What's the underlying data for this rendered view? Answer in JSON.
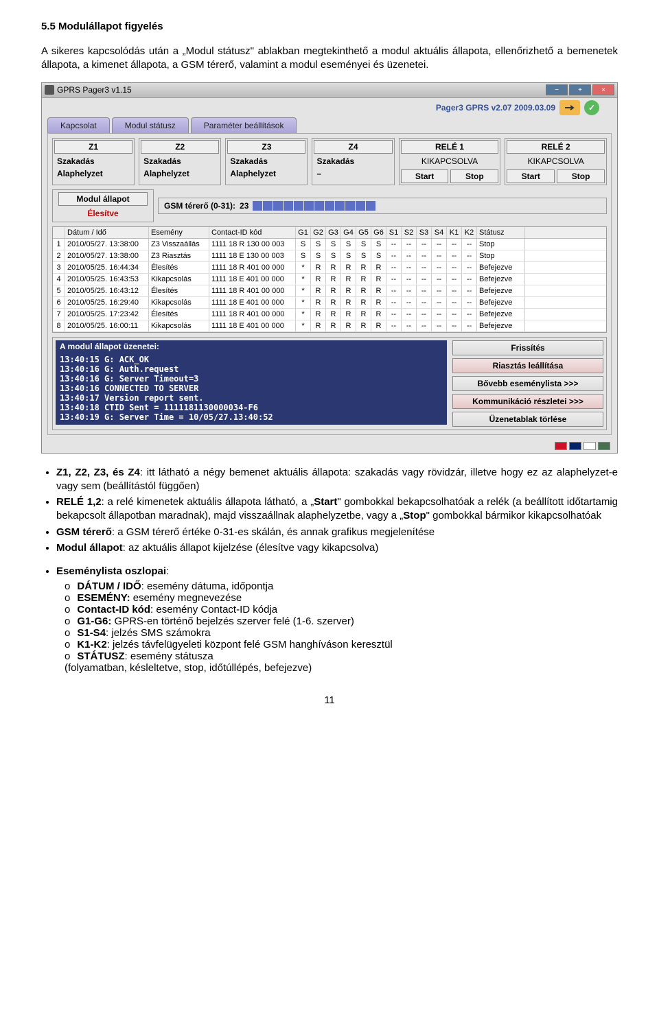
{
  "doc": {
    "heading": "5.5   Modulállapot figyelés",
    "intro": "A sikeres kapcsolódás után a „Modul státusz\" ablakban megtekinthető a modul aktuális állapota, ellenőrizhető a bemenetek állapota, a kimenet állapota, a GSM térerő, valamint a modul eseményei és üzenetei.",
    "after_bullets_spacer": "",
    "b1_pre": "Z1, Z2, Z3, és Z4",
    "b1": ": itt látható a négy bemenet aktuális állapota: szakadás vagy rövidzár, illetve hogy ez az alaphelyzet-e vagy sem (beállítástól függően)",
    "b2_pre": "RELÉ 1,2",
    "b2": ": a relé kimenetek aktuális állapota látható, a „",
    "b2_s": "Start",
    "b2_2": "\" gombokkal bekapcsolhatóak a relék (a beállított időtartamig bekapcsolt állapotban maradnak), majd visszaállnak alaphelyzetbe, vagy a „",
    "b2_st": "Stop",
    "b2_3": "\" gombokkal bármikor kikapcsolhatóak",
    "b3_pre": "GSM térerő",
    "b3": ": a GSM térerő értéke 0-31-es skálán, és annak grafikus megjelenítése",
    "b4_pre": "Modul állapot",
    "b4": ": az aktuális állapot kijelzése (élesítve vagy kikapcsolva)",
    "b5_pre": "Eseménylista oszlopai",
    "b5": ":",
    "s1_pre": "DÁTUM / IDŐ",
    "s1": ": esemény dátuma, időpontja",
    "s2_pre": "ESEMÉNY:",
    "s2": " esemény megnevezése",
    "s3_pre": "Contact-ID kód",
    "s3": ": esemény Contact-ID kódja",
    "s4_pre": "G1-G6:",
    "s4": " GPRS-en történő bejelzés szerver felé (1-6. szerver)",
    "s5_pre": "S1-S4",
    "s5": ": jelzés SMS számokra",
    "s6_pre": "K1-K2",
    "s6": ": jelzés távfelügyeleti központ felé GSM hanghíváson keresztül",
    "s7_pre": "STÁTUSZ",
    "s7": ": esemény státusza",
    "s7_2": "(folyamatban, késleltetve, stop, időtúllépés, befejezve)",
    "pagenum": "11"
  },
  "app": {
    "title": "GPRS Pager3 v1.15",
    "version": "Pager3 GPRS v2.07 2009.03.09",
    "tabs": [
      "Kapcsolat",
      "Modul státusz",
      "Paraméter beállítások"
    ],
    "zones": [
      {
        "h": "Z1",
        "v1": "Szakadás",
        "v2": "Alaphelyzet"
      },
      {
        "h": "Z2",
        "v1": "Szakadás",
        "v2": "Alaphelyzet"
      },
      {
        "h": "Z3",
        "v1": "Szakadás",
        "v2": "Alaphelyzet"
      },
      {
        "h": "Z4",
        "v1": "Szakadás",
        "v2": "–"
      }
    ],
    "relays": [
      {
        "h": "RELÉ 1",
        "v": "KIKAPCSOLVA",
        "b1": "Start",
        "b2": "Stop"
      },
      {
        "h": "RELÉ 2",
        "v": "KIKAPCSOLVA",
        "b1": "Start",
        "b2": "Stop"
      }
    ],
    "modul_h": "Modul állapot",
    "modul_v": "Élesítve",
    "gsm_label": "GSM térerő (0-31):",
    "gsm_val": "23",
    "ev_head": [
      "",
      "Dátum / Idő",
      "Esemény",
      "Contact-ID kód",
      "G1",
      "G2",
      "G3",
      "G4",
      "G5",
      "G6",
      "S1",
      "S2",
      "S3",
      "S4",
      "K1",
      "K2",
      "Státusz"
    ],
    "ev_rows": [
      [
        "1",
        "2010/05/27. 13:38:00",
        "Z3 Visszaállás",
        "1111 18 R 130 00 003",
        "S",
        "S",
        "S",
        "S",
        "S",
        "S",
        "--",
        "--",
        "--",
        "--",
        "--",
        "--",
        "Stop"
      ],
      [
        "2",
        "2010/05/27. 13:38:00",
        "Z3 Riasztás",
        "1111 18 E 130 00 003",
        "S",
        "S",
        "S",
        "S",
        "S",
        "S",
        "--",
        "--",
        "--",
        "--",
        "--",
        "--",
        "Stop"
      ],
      [
        "3",
        "2010/05/25. 16:44:34",
        "Élesítés",
        "1111 18 R 401 00 000",
        "*",
        "R",
        "R",
        "R",
        "R",
        "R",
        "--",
        "--",
        "--",
        "--",
        "--",
        "--",
        "Befejezve"
      ],
      [
        "4",
        "2010/05/25. 16:43:53",
        "Kikapcsolás",
        "1111 18 E 401 00 000",
        "*",
        "R",
        "R",
        "R",
        "R",
        "R",
        "--",
        "--",
        "--",
        "--",
        "--",
        "--",
        "Befejezve"
      ],
      [
        "5",
        "2010/05/25. 16:43:12",
        "Élesítés",
        "1111 18 R 401 00 000",
        "*",
        "R",
        "R",
        "R",
        "R",
        "R",
        "--",
        "--",
        "--",
        "--",
        "--",
        "--",
        "Befejezve"
      ],
      [
        "6",
        "2010/05/25. 16:29:40",
        "Kikapcsolás",
        "1111 18 E 401 00 000",
        "*",
        "R",
        "R",
        "R",
        "R",
        "R",
        "--",
        "--",
        "--",
        "--",
        "--",
        "--",
        "Befejezve"
      ],
      [
        "7",
        "2010/05/25. 17:23:42",
        "Élesítés",
        "1111 18 R 401 00 000",
        "*",
        "R",
        "R",
        "R",
        "R",
        "R",
        "--",
        "--",
        "--",
        "--",
        "--",
        "--",
        "Befejezve"
      ],
      [
        "8",
        "2010/05/25. 16:00:11",
        "Kikapcsolás",
        "1111 18 E 401 00 000",
        "*",
        "R",
        "R",
        "R",
        "R",
        "R",
        "--",
        "--",
        "--",
        "--",
        "--",
        "--",
        "Befejezve"
      ]
    ],
    "msg_title": "A modul állapot üzenetei:",
    "msgs": [
      "13:40:15  G: ACK_OK",
      "13:40:16  G: Auth.request",
      "13:40:16  G: Server Timeout=3",
      "13:40:16  CONNECTED TO SERVER",
      "13:40:17  Version report sent.",
      "13:40:18  CTID Sent = 1111181130000034-F6",
      "13:40:19  G: Server Time = 10/05/27.13:40:52"
    ],
    "rbtns": [
      "Frissítés",
      "Riasztás leállítása",
      "Bővebb eseménylista >>>",
      "Kommunikáció részletei >>>",
      "Üzenetablak törlése"
    ],
    "flags": [
      "#CE1126",
      "#012169",
      "#fff",
      "#477050"
    ]
  }
}
